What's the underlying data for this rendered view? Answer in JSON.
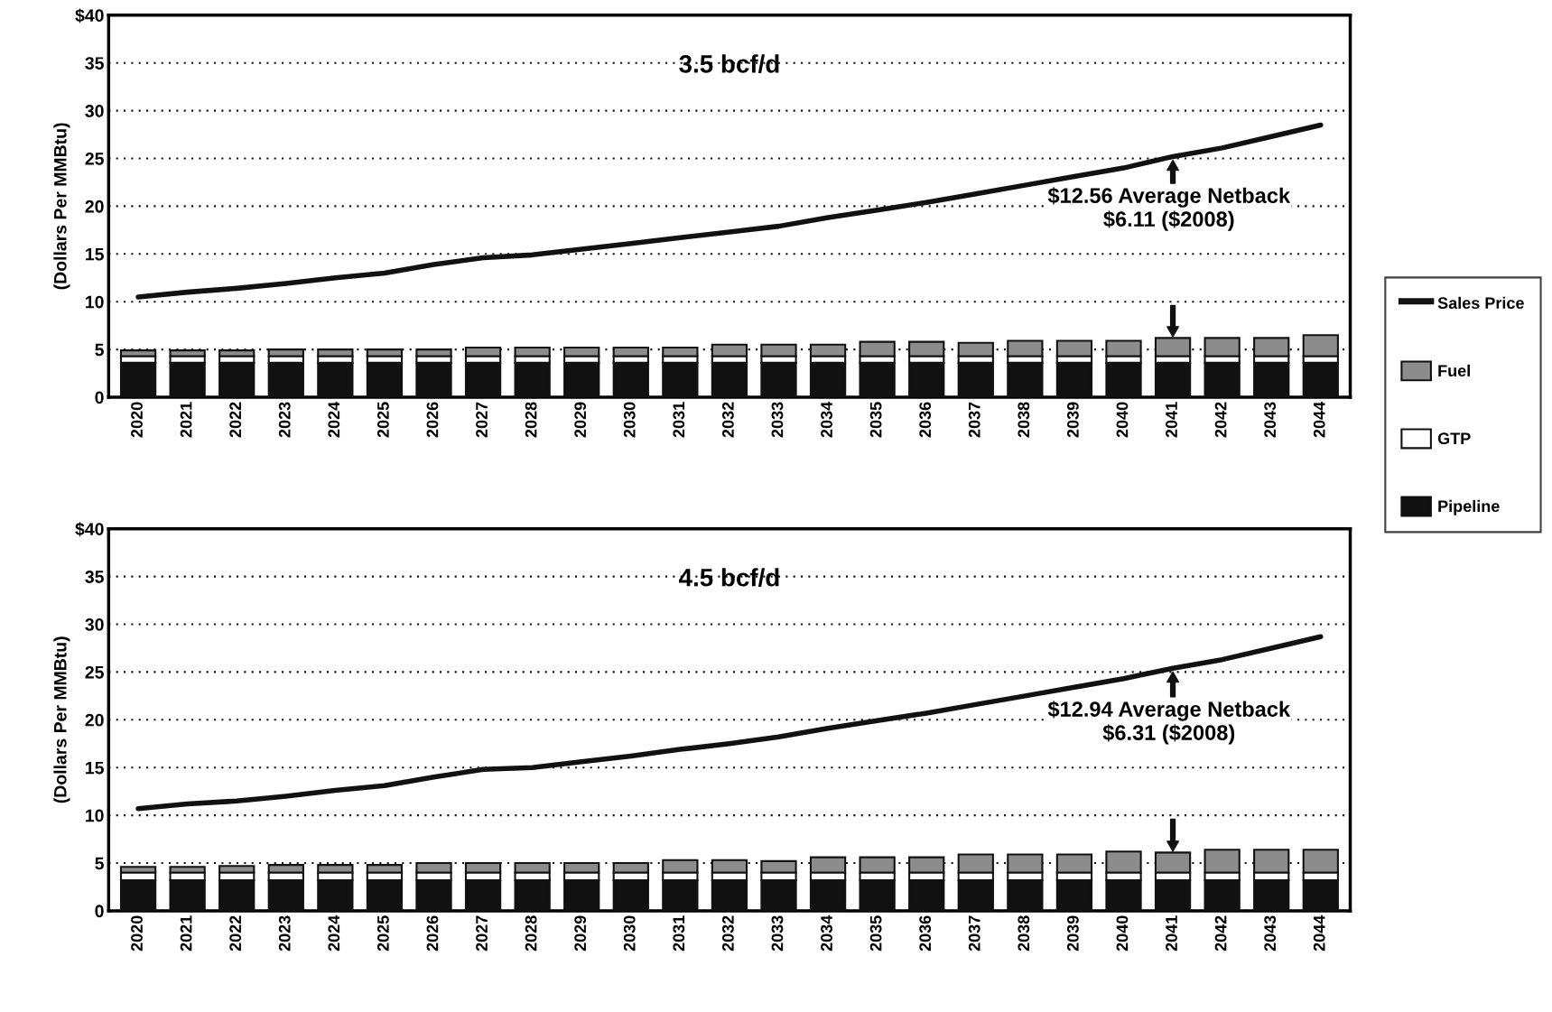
{
  "chart_data": [
    {
      "type": "bar",
      "title": "3.5 bcf/d",
      "ylabel": "(Dollars Per MMBtu)",
      "stacked": true,
      "categories": [
        "2020",
        "2021",
        "2022",
        "2023",
        "2024",
        "2025",
        "2026",
        "2027",
        "2028",
        "2029",
        "2030",
        "2031",
        "2032",
        "2033",
        "2034",
        "2035",
        "2036",
        "2037",
        "2038",
        "2039",
        "2040",
        "2041",
        "2042",
        "2043",
        "2044"
      ],
      "series": [
        {
          "name": "Pipeline",
          "color": "#111111",
          "values": [
            3.6,
            3.6,
            3.6,
            3.6,
            3.6,
            3.6,
            3.6,
            3.6,
            3.6,
            3.6,
            3.6,
            3.6,
            3.6,
            3.6,
            3.6,
            3.6,
            3.6,
            3.6,
            3.6,
            3.6,
            3.6,
            3.6,
            3.6,
            3.6,
            3.6
          ]
        },
        {
          "name": "GTP",
          "color": "#ffffff",
          "values": [
            0.7,
            0.7,
            0.7,
            0.7,
            0.7,
            0.7,
            0.7,
            0.7,
            0.7,
            0.7,
            0.7,
            0.7,
            0.7,
            0.7,
            0.7,
            0.7,
            0.7,
            0.7,
            0.7,
            0.7,
            0.7,
            0.7,
            0.7,
            0.7,
            0.7
          ]
        },
        {
          "name": "Fuel",
          "color": "#8c8c8c",
          "values": [
            0.6,
            0.6,
            0.6,
            0.7,
            0.7,
            0.7,
            0.7,
            0.9,
            0.9,
            0.9,
            0.9,
            0.9,
            1.2,
            1.2,
            1.2,
            1.5,
            1.5,
            1.4,
            1.6,
            1.6,
            1.6,
            1.9,
            1.9,
            1.9,
            2.2
          ]
        },
        {
          "name": "Sales Price",
          "type": "line",
          "color": "#111111",
          "values": [
            10.5,
            11.0,
            11.4,
            11.9,
            12.5,
            13.0,
            13.9,
            14.6,
            14.9,
            15.5,
            16.1,
            16.7,
            17.3,
            17.9,
            18.8,
            19.6,
            20.4,
            21.3,
            22.2,
            23.1,
            24.0,
            25.2,
            26.1,
            27.3,
            28.5
          ]
        }
      ],
      "ylim": [
        0,
        40
      ],
      "yticks": [
        0,
        5,
        10,
        15,
        20,
        25,
        30,
        35,
        {
          "value": 40,
          "label": "$40"
        }
      ],
      "grid": "y",
      "legend": "right",
      "annotations": [
        "$12.56 Average Netback\n$6.11 ($2008)"
      ]
    },
    {
      "type": "bar",
      "title": "4.5 bcf/d",
      "ylabel": "(Dollars Per MMBtu)",
      "stacked": true,
      "categories": [
        "2020",
        "2021",
        "2022",
        "2023",
        "2024",
        "2025",
        "2026",
        "2027",
        "2028",
        "2029",
        "2030",
        "2031",
        "2032",
        "2033",
        "2034",
        "2035",
        "2036",
        "2037",
        "2038",
        "2039",
        "2040",
        "2041",
        "2042",
        "2043",
        "2044"
      ],
      "series": [
        {
          "name": "Pipeline",
          "color": "#111111",
          "values": [
            3.2,
            3.2,
            3.2,
            3.2,
            3.2,
            3.2,
            3.2,
            3.2,
            3.2,
            3.2,
            3.2,
            3.2,
            3.2,
            3.2,
            3.2,
            3.2,
            3.2,
            3.2,
            3.2,
            3.2,
            3.2,
            3.2,
            3.2,
            3.2,
            3.2
          ]
        },
        {
          "name": "GTP",
          "color": "#ffffff",
          "values": [
            0.8,
            0.8,
            0.8,
            0.8,
            0.8,
            0.8,
            0.8,
            0.8,
            0.8,
            0.8,
            0.8,
            0.8,
            0.8,
            0.8,
            0.8,
            0.8,
            0.8,
            0.8,
            0.8,
            0.8,
            0.8,
            0.8,
            0.8,
            0.8,
            0.8
          ]
        },
        {
          "name": "Fuel",
          "color": "#8c8c8c",
          "values": [
            0.6,
            0.6,
            0.7,
            0.8,
            0.8,
            0.8,
            1.0,
            1.0,
            1.0,
            1.0,
            1.0,
            1.3,
            1.3,
            1.2,
            1.6,
            1.6,
            1.6,
            1.9,
            1.9,
            1.9,
            2.2,
            2.1,
            2.4,
            2.4,
            2.4
          ]
        },
        {
          "name": "Sales Price",
          "type": "line",
          "color": "#111111",
          "values": [
            10.7,
            11.2,
            11.5,
            12.0,
            12.6,
            13.1,
            14.0,
            14.8,
            15.0,
            15.6,
            16.2,
            16.9,
            17.5,
            18.2,
            19.1,
            19.9,
            20.7,
            21.6,
            22.5,
            23.4,
            24.3,
            25.4,
            26.3,
            27.5,
            28.7
          ]
        }
      ],
      "ylim": [
        0,
        40
      ],
      "yticks": [
        0,
        5,
        10,
        15,
        20,
        25,
        30,
        35,
        {
          "value": 40,
          "label": "$40"
        }
      ],
      "grid": "y",
      "legend": "right",
      "annotations": [
        "$12.94 Average Netback\n$6.31 ($2008)"
      ]
    }
  ]
}
